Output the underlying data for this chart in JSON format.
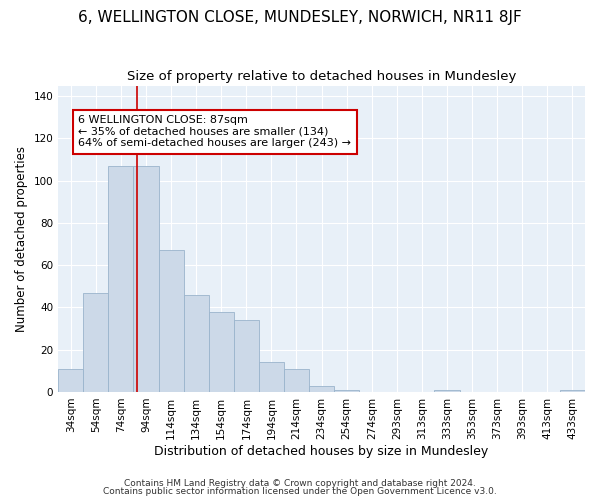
{
  "title": "6, WELLINGTON CLOSE, MUNDESLEY, NORWICH, NR11 8JF",
  "subtitle": "Size of property relative to detached houses in Mundesley",
  "xlabel": "Distribution of detached houses by size in Mundesley",
  "ylabel": "Number of detached properties",
  "footer_line1": "Contains HM Land Registry data © Crown copyright and database right 2024.",
  "footer_line2": "Contains public sector information licensed under the Open Government Licence v3.0.",
  "bar_labels": [
    "34sqm",
    "54sqm",
    "74sqm",
    "94sqm",
    "114sqm",
    "134sqm",
    "154sqm",
    "174sqm",
    "194sqm",
    "214sqm",
    "234sqm",
    "254sqm",
    "274sqm",
    "293sqm",
    "313sqm",
    "333sqm",
    "353sqm",
    "373sqm",
    "393sqm",
    "413sqm",
    "433sqm"
  ],
  "bar_values": [
    11,
    47,
    107,
    107,
    67,
    46,
    38,
    34,
    14,
    11,
    3,
    1,
    0,
    0,
    0,
    1,
    0,
    0,
    0,
    0,
    1
  ],
  "bar_color": "#ccd9e8",
  "bar_edge_color": "#9ab4cc",
  "highlight_bar_index": 3,
  "highlight_color": "#cc0000",
  "annotation_title": "6 WELLINGTON CLOSE: 87sqm",
  "annotation_line1": "← 35% of detached houses are smaller (134)",
  "annotation_line2": "64% of semi-detached houses are larger (243) →",
  "annotation_box_edge": "#cc0000",
  "ylim": [
    0,
    145
  ],
  "yticks": [
    0,
    20,
    40,
    60,
    80,
    100,
    120,
    140
  ],
  "title_fontsize": 11,
  "subtitle_fontsize": 9.5,
  "xlabel_fontsize": 9,
  "ylabel_fontsize": 8.5,
  "tick_fontsize": 7.5,
  "annotation_fontsize": 8,
  "footer_fontsize": 6.5
}
